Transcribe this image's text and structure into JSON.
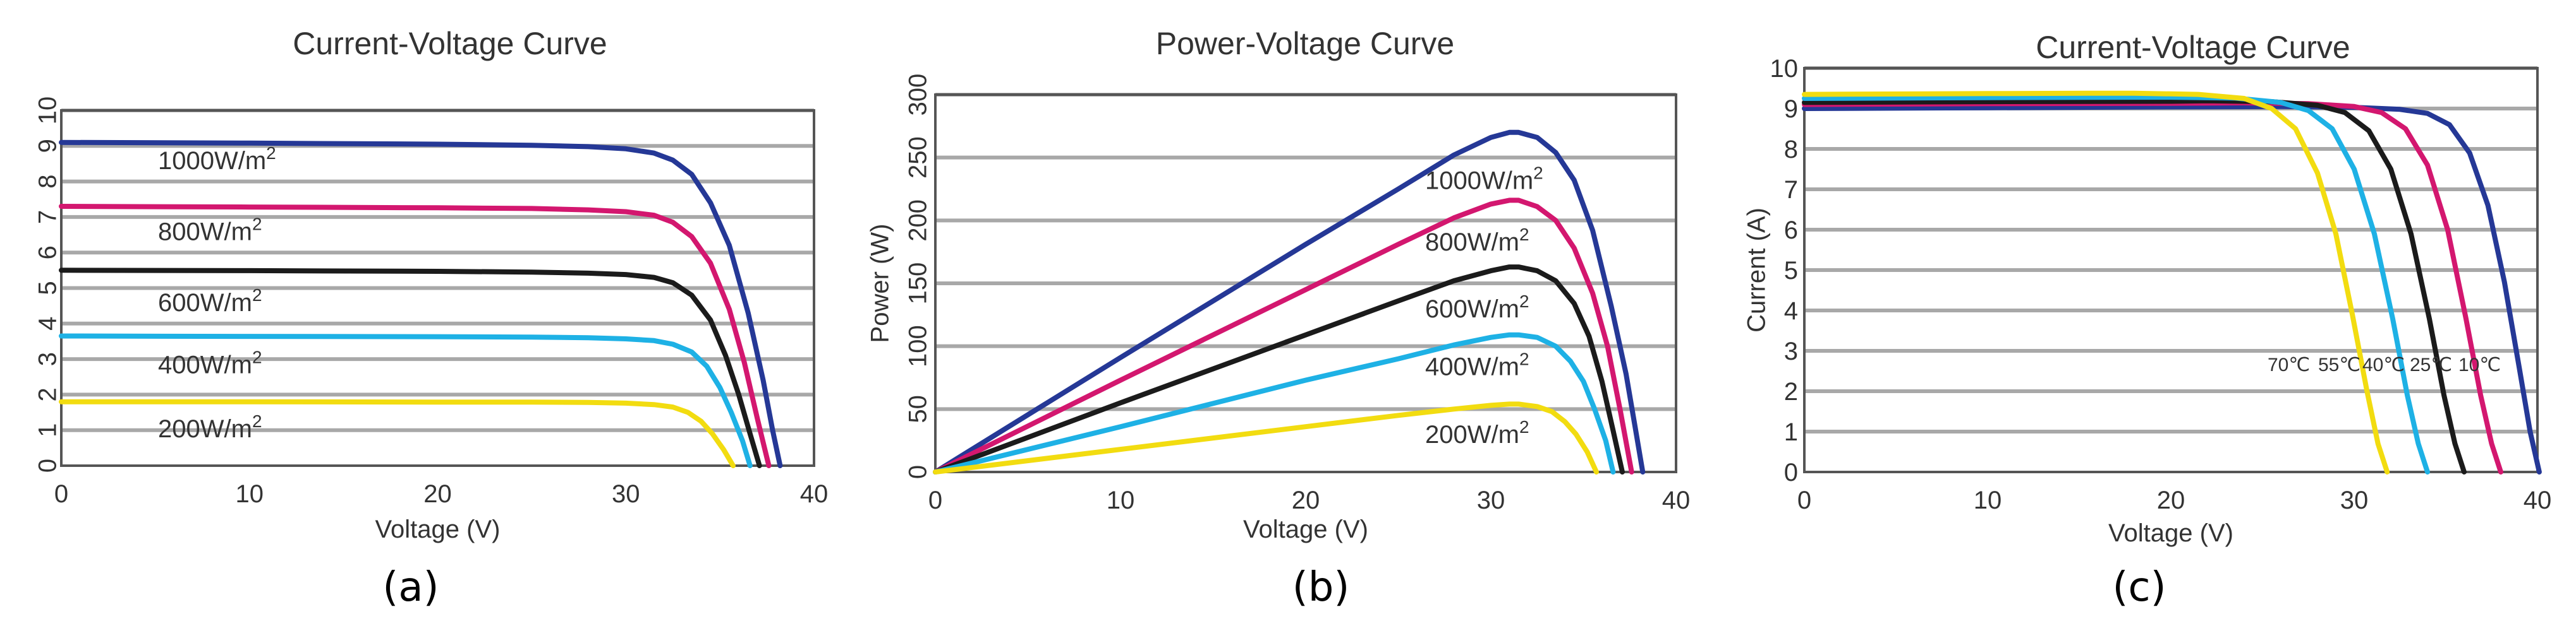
{
  "colors": {
    "blue": "#253896",
    "magenta": "#d3176f",
    "black": "#1b1b1b",
    "cyan": "#1eb1e5",
    "yellow": "#f2dc10"
  },
  "chart_data": [
    {
      "type": "line",
      "caption": "(a)",
      "title": "Current-Voltage Curve",
      "xlabel": "Voltage (V)",
      "ylabel": "",
      "xlim": [
        0,
        40
      ],
      "ylim": [
        0,
        10
      ],
      "xticks": [
        "0",
        "10",
        "20",
        "30",
        "40"
      ],
      "yticks": [
        "0",
        "1",
        "2",
        "3",
        "4",
        "5",
        "6",
        "7",
        "8",
        "9",
        "10"
      ],
      "grid": true,
      "series": [
        {
          "name": "1000W/m²",
          "label_main": "1000W/m",
          "label_sup": "2",
          "color": "#253896",
          "x": [
            0,
            10,
            20,
            25,
            28,
            30,
            31.5,
            32.5,
            33.5,
            34.5,
            35.5,
            36.5,
            37.3,
            37.8,
            38.2
          ],
          "y": [
            9.1,
            9.08,
            9.05,
            9.02,
            8.98,
            8.92,
            8.8,
            8.6,
            8.2,
            7.4,
            6.2,
            4.3,
            2.4,
            1.0,
            0
          ]
        },
        {
          "name": "800W/m²",
          "label_main": "800W/m",
          "label_sup": "2",
          "color": "#d3176f",
          "x": [
            0,
            10,
            20,
            25,
            28,
            30,
            31.5,
            32.5,
            33.5,
            34.5,
            35.5,
            36.3,
            37.0,
            37.6
          ],
          "y": [
            7.3,
            7.28,
            7.26,
            7.24,
            7.2,
            7.15,
            7.05,
            6.85,
            6.45,
            5.7,
            4.4,
            2.9,
            1.3,
            0
          ]
        },
        {
          "name": "600W/m²",
          "label_main": "600W/m",
          "label_sup": "2",
          "color": "#1b1b1b",
          "x": [
            0,
            10,
            20,
            25,
            28,
            30,
            31.5,
            32.5,
            33.5,
            34.5,
            35.3,
            36.0,
            36.6,
            37.1
          ],
          "y": [
            5.5,
            5.49,
            5.47,
            5.45,
            5.42,
            5.38,
            5.3,
            5.15,
            4.8,
            4.1,
            3.1,
            2.0,
            0.9,
            0
          ]
        },
        {
          "name": "400W/m²",
          "label_main": "400W/m",
          "label_sup": "2",
          "color": "#1eb1e5",
          "x": [
            0,
            10,
            20,
            25,
            28,
            30,
            31.5,
            32.5,
            33.5,
            34.3,
            35.0,
            35.6,
            36.2,
            36.6
          ],
          "y": [
            3.65,
            3.64,
            3.63,
            3.62,
            3.6,
            3.57,
            3.52,
            3.42,
            3.2,
            2.8,
            2.2,
            1.5,
            0.7,
            0
          ]
        },
        {
          "name": "200W/m²",
          "label_main": "200W/m",
          "label_sup": "2",
          "color": "#f2dc10",
          "x": [
            0,
            10,
            20,
            25,
            28,
            30,
            31.5,
            32.5,
            33.3,
            34.0,
            34.6,
            35.2,
            35.7
          ],
          "y": [
            1.8,
            1.8,
            1.79,
            1.79,
            1.78,
            1.76,
            1.72,
            1.65,
            1.5,
            1.25,
            0.9,
            0.45,
            0
          ]
        }
      ]
    },
    {
      "type": "line",
      "caption": "(b)",
      "title": "Power-Voltage Curve",
      "xlabel": "Voltage (V)",
      "ylabel": "Power (W)",
      "xlim": [
        0,
        40
      ],
      "ylim": [
        0,
        300
      ],
      "xticks": [
        "0",
        "10",
        "20",
        "30",
        "40"
      ],
      "yticks": [
        "0",
        "50",
        "100",
        "150",
        "200",
        "250",
        "300"
      ],
      "grid": true,
      "series": [
        {
          "name": "1000W/m²",
          "label_main": "1000W/m",
          "label_sup": "2",
          "color": "#253896",
          "x": [
            0,
            10,
            20,
            25,
            28,
            30,
            31,
            31.5,
            32.5,
            33.5,
            34.5,
            35.5,
            36.5,
            37.3,
            37.8,
            38.2
          ],
          "y": [
            0,
            91,
            181,
            225,
            252,
            266,
            270,
            270,
            266,
            254,
            232,
            192,
            132,
            78,
            35,
            0
          ]
        },
        {
          "name": "800W/m²",
          "label_main": "800W/m",
          "label_sup": "2",
          "color": "#d3176f",
          "x": [
            0,
            10,
            20,
            25,
            28,
            30,
            31,
            31.5,
            32.5,
            33.5,
            34.5,
            35.5,
            36.3,
            37.0,
            37.6
          ],
          "y": [
            0,
            73,
            145,
            181,
            202,
            213,
            216,
            216,
            211,
            200,
            178,
            142,
            100,
            48,
            0
          ]
        },
        {
          "name": "600W/m²",
          "label_main": "600W/m",
          "label_sup": "2",
          "color": "#1b1b1b",
          "x": [
            0,
            10,
            20,
            25,
            28,
            30,
            31,
            31.5,
            32.5,
            33.5,
            34.5,
            35.3,
            36.0,
            36.6,
            37.1
          ],
          "y": [
            0,
            55,
            109,
            136,
            152,
            160,
            163,
            163,
            160,
            152,
            134,
            108,
            72,
            33,
            0
          ]
        },
        {
          "name": "400W/m²",
          "label_main": "400W/m",
          "label_sup": "2",
          "color": "#1eb1e5",
          "x": [
            0,
            10,
            20,
            25,
            28,
            30,
            31,
            31.5,
            32.5,
            33.5,
            34.3,
            35.0,
            35.6,
            36.2,
            36.6
          ],
          "y": [
            0,
            36,
            73,
            90,
            101,
            107,
            109,
            109,
            107,
            100,
            88,
            72,
            50,
            25,
            0
          ]
        },
        {
          "name": "200W/m²",
          "label_main": "200W/m",
          "label_sup": "2",
          "color": "#f2dc10",
          "x": [
            0,
            10,
            20,
            25,
            28,
            30,
            31,
            31.5,
            32.5,
            33.3,
            34.0,
            34.6,
            35.2,
            35.7
          ],
          "y": [
            0,
            18,
            36,
            45,
            50,
            53,
            54,
            54,
            52,
            48,
            40,
            30,
            16,
            0
          ]
        }
      ]
    },
    {
      "type": "line",
      "caption": "(c)",
      "title": "Current-Voltage Curve",
      "xlabel": "Voltage (V)",
      "ylabel": "Current (A)",
      "xlim": [
        0,
        40
      ],
      "ylim": [
        0,
        10
      ],
      "xticks": [
        "0",
        "10",
        "20",
        "30",
        "40"
      ],
      "yticks": [
        "0",
        "1",
        "2",
        "3",
        "4",
        "5",
        "6",
        "7",
        "8",
        "9",
        "10"
      ],
      "grid": true,
      "series": [
        {
          "name": "10℃",
          "label": "10℃",
          "color": "#253896",
          "x": [
            0,
            10,
            20,
            26,
            30,
            32.5,
            34,
            35.2,
            36.3,
            37.3,
            38.2,
            39.0,
            39.6,
            40.1
          ],
          "y": [
            9.0,
            9.02,
            9.04,
            9.05,
            9.03,
            8.98,
            8.88,
            8.6,
            7.9,
            6.6,
            4.7,
            2.6,
            1.0,
            0
          ]
        },
        {
          "name": "25℃",
          "label": "25℃",
          "color": "#d3176f",
          "x": [
            0,
            10,
            20,
            24,
            27.5,
            30,
            31.5,
            32.8,
            34.0,
            35.1,
            36.1,
            36.9,
            37.5,
            38.0
          ],
          "y": [
            9.1,
            9.12,
            9.13,
            9.14,
            9.12,
            9.05,
            8.9,
            8.5,
            7.6,
            6.0,
            3.8,
            1.9,
            0.7,
            0
          ]
        },
        {
          "name": "40℃",
          "label": "40℃",
          "color": "#1b1b1b",
          "x": [
            0,
            10,
            20,
            22,
            25.5,
            28,
            29.5,
            30.8,
            32.0,
            33.1,
            34.1,
            34.9,
            35.5,
            36.0
          ],
          "y": [
            9.15,
            9.17,
            9.18,
            9.19,
            9.17,
            9.08,
            8.9,
            8.45,
            7.5,
            5.9,
            3.8,
            1.9,
            0.7,
            0
          ]
        },
        {
          "name": "55℃",
          "label": "55℃",
          "color": "#1eb1e5",
          "x": [
            0,
            10,
            18,
            20,
            23.5,
            26,
            27.5,
            28.8,
            30.0,
            31.1,
            32.1,
            32.9,
            33.5,
            34.0
          ],
          "y": [
            9.25,
            9.27,
            9.28,
            9.28,
            9.26,
            9.15,
            8.95,
            8.5,
            7.5,
            5.9,
            3.8,
            1.9,
            0.7,
            0
          ]
        },
        {
          "name": "70℃",
          "label": "70℃",
          "color": "#f2dc10",
          "x": [
            0,
            10,
            16,
            18,
            21.5,
            24,
            25.5,
            26.8,
            28.0,
            29.0,
            29.9,
            30.7,
            31.3,
            31.8
          ],
          "y": [
            9.35,
            9.37,
            9.38,
            9.38,
            9.35,
            9.25,
            9.0,
            8.5,
            7.4,
            5.9,
            3.9,
            2.0,
            0.7,
            0
          ]
        }
      ]
    }
  ]
}
